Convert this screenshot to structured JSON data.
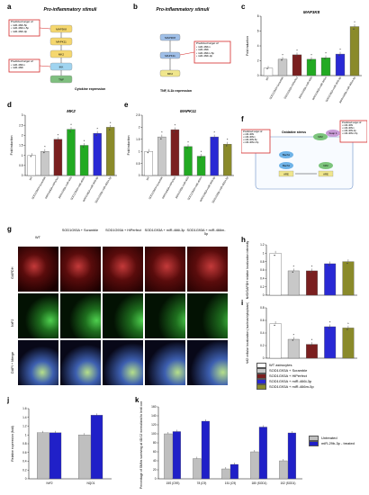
{
  "colors": {
    "wt": "#ffffff",
    "scramble": "#c8c8c8",
    "hiperfect": "#7a1f1f",
    "mir466i": "#2929d4",
    "mir466m": "#8a8a2a",
    "green": "#22aa22",
    "untreated": "#bfbfbf",
    "treated": "#2020c8",
    "red_border": "#d62b2b"
  },
  "panels": {
    "a": {
      "letter": "a",
      "title": "Pro-inflammatory stimuli",
      "box1": "Predicted target of:\n• miR-466i-5p\n• miR-466m-5p\n• miR-466i-3p",
      "box2": "Predicted target of:\n• miR-466m\n• miR-466i",
      "nodes": [
        "MAP3K8",
        "MAPK11",
        "MK2",
        "IKK",
        "TNF"
      ],
      "footer": "Cytokine expression"
    },
    "b": {
      "letter": "b",
      "title": "Pro-inflammatory stimuli",
      "box": "Predicted target of:\n• miR-466m\n• miR-466i\n• miR-466m-5p\n• miR-466i-3p",
      "nodes": [
        "MAP3K8",
        "MAPK11",
        "MK2"
      ],
      "footer": "TNF, IL1b expression"
    },
    "c": {
      "letter": "c",
      "title": "MAP3K8",
      "ylabel": "Fold induction"
    },
    "d": {
      "letter": "d",
      "title": "MK2",
      "ylabel": "Fold induction"
    },
    "e": {
      "letter": "e",
      "title": "MAPK11",
      "ylabel": "Fold induction"
    },
    "f": {
      "letter": "f",
      "stress": "Oxidative stress",
      "box_left": "Predicted target of:\n• miR-466i\n• miR-466m\n• miR-466i-5p\n• miR-466m-5p",
      "box_right": "Predicted target of:\n• miR-466i\n• miR-466m\n• miR-466i-3p\n• miR-466m-5p",
      "nodes": [
        "Bach1",
        "Nrf2",
        "Keap 1",
        "Bach1",
        "Nrf2",
        "ARE",
        "ARE"
      ]
    },
    "g": {
      "letter": "g",
      "columns": [
        "WT",
        "SOD1G93A + Scramble",
        "SOD1G93A + HiPerfect",
        "SOD1G93A + miR-466i-3p",
        "SOD1G93A + miR-466m-5p"
      ],
      "rows": [
        "GAPDH",
        "NrF2",
        "DAPI + Merge"
      ]
    },
    "h": {
      "letter": "h",
      "ylabel": "Nrf2/GAPDH relative localization intensity"
    },
    "i": {
      "letter": "i",
      "ylabel": "Nrf2 cellular localization (nucleus/cytoplasm)"
    },
    "legend": [
      "WT astrocytes",
      "SOD1G93A + Scramble",
      "SOD1G93A + HiPerfect",
      "SOD1G93A + miR-466i-3p",
      "SOD1G93A + miR-466m-5p"
    ],
    "j": {
      "letter": "j",
      "ylabel": "Relative expression (fold)"
    },
    "k": {
      "letter": "k",
      "ylabel": "Percentage of SMNs surviving at 4D/12 normalized to lenti control",
      "legend": [
        "Untreated",
        "miR-29b-3p - treated"
      ]
    }
  },
  "chart_data": [
    {
      "id": "c",
      "type": "bar",
      "title": "MAP3K8",
      "ylabel": "Fold induction",
      "ylim": [
        0,
        8
      ],
      "yticks": [
        0,
        2,
        4,
        6,
        8
      ],
      "categories": [
        "WT",
        "SOD1G93A+Scramble",
        "SOD1G93A+HiPerfect",
        "SOD1G93A+miR-466i",
        "SOD1G93A+miR-466m",
        "SOD1G93A+miR-466i-3p",
        "SOD1G93A+miR-466m-5p"
      ],
      "values": [
        1.0,
        2.2,
        2.8,
        2.2,
        2.4,
        2.9,
        6.6
      ],
      "stars": [
        false,
        true,
        true,
        true,
        true,
        true,
        true
      ]
    },
    {
      "id": "d",
      "type": "bar",
      "title": "MK2",
      "ylabel": "Fold induction",
      "ylim": [
        0,
        3
      ],
      "yticks": [
        0,
        0.5,
        1,
        1.5,
        2,
        2.5,
        3
      ],
      "categories": [
        "WT",
        "SOD1G93A+Scramble",
        "SOD1G93A+HiPerfect",
        "SOD1G93A+miR-466i",
        "SOD1G93A+miR-466m",
        "SOD1G93A+miR-466i-3p",
        "SOD1G93A+miR-466m-5p"
      ],
      "values": [
        1.0,
        1.2,
        1.8,
        2.3,
        1.5,
        2.1,
        2.4
      ],
      "stars": [
        false,
        true,
        true,
        true,
        true,
        true,
        true
      ]
    },
    {
      "id": "e",
      "type": "bar",
      "title": "MAPK11",
      "ylabel": "Fold induction",
      "ylim": [
        0,
        2.5
      ],
      "yticks": [
        0,
        0.5,
        1,
        1.5,
        2,
        2.5
      ],
      "categories": [
        "WT",
        "SOD1G93A+Scramble",
        "SOD1G93A+HiPerfect",
        "SOD1G93A+miR-466i",
        "SOD1G93A+miR-466m",
        "SOD1G93A+miR-466i-3p",
        "SOD1G93A+miR-466m-5p"
      ],
      "values": [
        1.0,
        1.6,
        1.9,
        1.2,
        0.8,
        1.6,
        1.3
      ],
      "stars": [
        false,
        true,
        true,
        true,
        true,
        true,
        true
      ]
    },
    {
      "id": "h",
      "type": "bar",
      "ylabel": "Nrf2/GAPDH relative localization intensity",
      "ylim": [
        0,
        1.2
      ],
      "yticks": [
        0,
        0.2,
        0.4,
        0.6,
        0.8,
        1,
        1.2
      ],
      "categories": [
        "WT",
        "Scramble",
        "HiPerfect",
        "miR-466i-3p",
        "miR-466m-5p"
      ],
      "values": [
        1.0,
        0.58,
        0.58,
        0.75,
        0.8
      ],
      "stars": [
        false,
        true,
        true,
        false,
        false
      ]
    },
    {
      "id": "i",
      "type": "bar",
      "ylabel": "Nrf2 cellular localization (nucleus/cytoplasm)",
      "ylim": [
        0,
        0.8
      ],
      "yticks": [
        0,
        0.2,
        0.4,
        0.6,
        0.8
      ],
      "categories": [
        "WT",
        "Scramble",
        "HiPerfect",
        "miR-466i-3p",
        "miR-466m-5p"
      ],
      "values": [
        0.55,
        0.3,
        0.22,
        0.5,
        0.48
      ],
      "stars": [
        false,
        true,
        true,
        true,
        true
      ]
    },
    {
      "id": "j",
      "type": "bar",
      "ylabel": "Relative expression (fold)",
      "ylim": [
        0,
        1.6
      ],
      "yticks": [
        0,
        0.2,
        0.4,
        0.6,
        0.8,
        1,
        1.2,
        1.4,
        1.6
      ],
      "categories": [
        "NrF2",
        "NQO1"
      ],
      "series": [
        {
          "values": [
            1.05,
            1.0
          ]
        },
        {
          "values": [
            1.05,
            1.45
          ]
        }
      ]
    },
    {
      "id": "k",
      "type": "bar",
      "ylabel": "Percentage of SMNs surviving at 4D/12 normalized to lenti control",
      "ylim": [
        0,
        160
      ],
      "yticks": [
        0,
        20,
        40,
        60,
        80,
        100,
        120,
        140,
        160
      ],
      "categories": [
        "15S (C9S)",
        "78 (C9)",
        "151 (C9)",
        "180 (SOD1)",
        "102 (SOD1)"
      ],
      "series": [
        {
          "name": "Untreated",
          "values": [
            100,
            45,
            22,
            60,
            40
          ]
        },
        {
          "name": "miR-29b-3p - treated",
          "values": [
            105,
            128,
            32,
            115,
            102
          ]
        }
      ]
    }
  ]
}
